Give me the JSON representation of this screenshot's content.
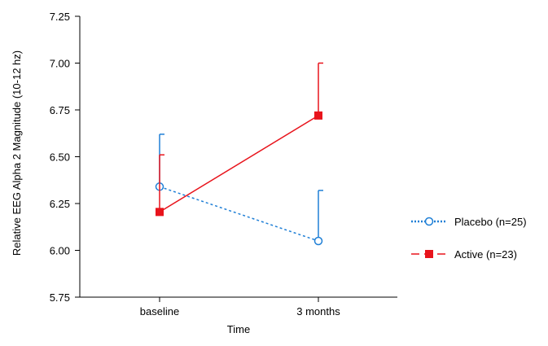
{
  "chart_data": {
    "type": "line",
    "title": "",
    "xlabel": "Time",
    "ylabel": "Relative EEG Alpha 2 Magnitude (10-12 hz)",
    "categories": [
      "baseline",
      "3 months"
    ],
    "ylim": [
      5.75,
      7.25
    ],
    "yticks": [
      "5.75",
      "6.00",
      "6.25",
      "6.50",
      "6.75",
      "7.00",
      "7.25"
    ],
    "grid": false,
    "legend_position": "right",
    "series": [
      {
        "name": "Placebo (n=25)",
        "color": "#1f7fd6",
        "line_style": "dotted",
        "marker": "open-circle",
        "values": [
          6.34,
          6.05
        ],
        "error_upper": [
          6.62,
          6.32
        ]
      },
      {
        "name": "Active (n=23)",
        "color": "#e8141c",
        "line_style": "solid",
        "marker": "filled-square",
        "values": [
          6.205,
          6.72
        ],
        "error_upper": [
          6.51,
          7.0
        ]
      }
    ]
  }
}
